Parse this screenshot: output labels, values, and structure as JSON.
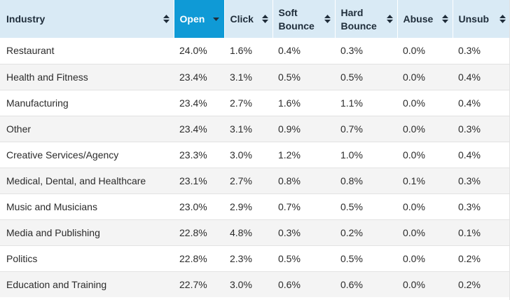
{
  "columns": [
    {
      "label": "Industry",
      "label_line2": ""
    },
    {
      "label": "Open",
      "label_line2": ""
    },
    {
      "label": "Click",
      "label_line2": ""
    },
    {
      "label": "Soft",
      "label_line2": "Bounce"
    },
    {
      "label": "Hard",
      "label_line2": "Bounce"
    },
    {
      "label": "Abuse",
      "label_line2": ""
    },
    {
      "label": "Unsub",
      "label_line2": ""
    }
  ],
  "sorted_column": "Open",
  "sort_direction": "descending",
  "colors": {
    "header_bg": "#d9eaf5",
    "sorted_header_bg": "#0f9ad6",
    "stripe_bg": "#f4f4f4"
  },
  "rows": [
    [
      "Restaurant",
      "24.0%",
      "1.6%",
      "0.4%",
      "0.3%",
      "0.0%",
      "0.3%"
    ],
    [
      "Health and Fitness",
      "23.4%",
      "3.1%",
      "0.5%",
      "0.5%",
      "0.0%",
      "0.4%"
    ],
    [
      "Manufacturing",
      "23.4%",
      "2.7%",
      "1.6%",
      "1.1%",
      "0.0%",
      "0.4%"
    ],
    [
      "Other",
      "23.4%",
      "3.1%",
      "0.9%",
      "0.7%",
      "0.0%",
      "0.3%"
    ],
    [
      "Creative Services/Agency",
      "23.3%",
      "3.0%",
      "1.2%",
      "1.0%",
      "0.0%",
      "0.4%"
    ],
    [
      "Medical, Dental, and Healthcare",
      "23.1%",
      "2.7%",
      "0.8%",
      "0.8%",
      "0.1%",
      "0.3%"
    ],
    [
      "Music and Musicians",
      "23.0%",
      "2.9%",
      "0.7%",
      "0.5%",
      "0.0%",
      "0.3%"
    ],
    [
      "Media and Publishing",
      "22.8%",
      "4.8%",
      "0.3%",
      "0.2%",
      "0.0%",
      "0.1%"
    ],
    [
      "Politics",
      "22.8%",
      "2.3%",
      "0.5%",
      "0.5%",
      "0.0%",
      "0.2%"
    ],
    [
      "Education and Training",
      "22.7%",
      "3.0%",
      "0.6%",
      "0.6%",
      "0.0%",
      "0.2%"
    ]
  ]
}
